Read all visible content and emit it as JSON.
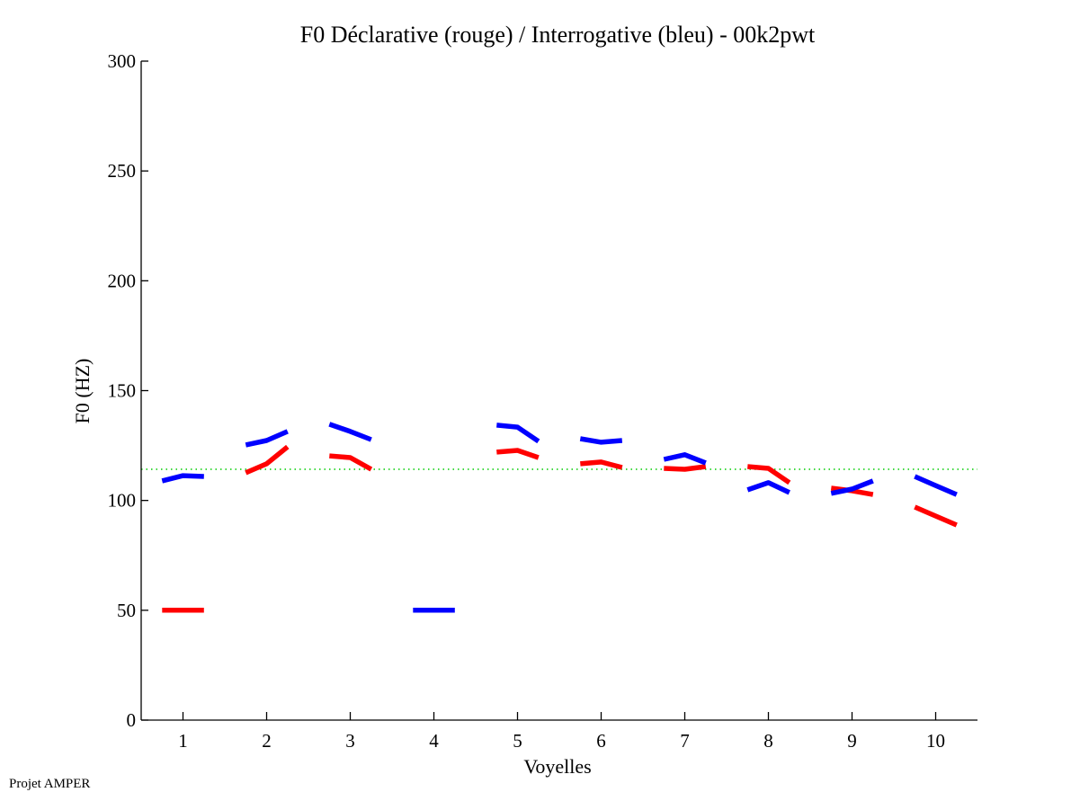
{
  "chart_data": {
    "type": "line",
    "title": "F0 Déclarative (rouge) / Interrogative (bleu) - 00k2pwt",
    "xlabel": "Voyelles",
    "ylabel": "F0 (HZ)",
    "xlim": [
      0.5,
      10.5
    ],
    "ylim": [
      0,
      300
    ],
    "xticks": [
      1,
      2,
      3,
      4,
      5,
      6,
      7,
      8,
      9,
      10
    ],
    "yticks": [
      0,
      50,
      100,
      150,
      200,
      250,
      300
    ],
    "grid": false,
    "reference_line": {
      "y": 114.2,
      "color": "#00cc00",
      "style": "dotted"
    },
    "segment_offsets": [
      -0.25,
      0,
      0.25
    ],
    "series": [
      {
        "name": "Déclarative (rouge)",
        "color": "#ff0000",
        "segments": [
          {
            "vowel": 1,
            "values": [
              50,
              50,
              50
            ]
          },
          {
            "vowel": 2,
            "values": [
              112.6,
              116.7,
              124.4
            ]
          },
          {
            "vowel": 3,
            "values": [
              120.3,
              119.5,
              114.2
            ]
          },
          {
            "vowel": 5,
            "values": [
              122.0,
              122.8,
              119.5
            ]
          },
          {
            "vowel": 6,
            "values": [
              116.7,
              117.5,
              115.0
            ]
          },
          {
            "vowel": 7,
            "values": [
              114.6,
              114.2,
              115.4
            ]
          },
          {
            "vowel": 8,
            "values": [
              115.4,
              114.6,
              108.1
            ]
          },
          {
            "vowel": 9,
            "values": [
              105.6,
              104.4,
              102.7
            ]
          },
          {
            "vowel": 10,
            "values": [
              97.0,
              92.9,
              88.8
            ]
          }
        ]
      },
      {
        "name": "Interrogative (bleu)",
        "color": "#0000ff",
        "segments": [
          {
            "vowel": 1,
            "values": [
              108.9,
              111.3,
              110.9
            ]
          },
          {
            "vowel": 2,
            "values": [
              125.3,
              127.3,
              131.4
            ]
          },
          {
            "vowel": 3,
            "values": [
              134.7,
              131.4,
              127.7
            ]
          },
          {
            "vowel": 4,
            "values": [
              50,
              50,
              50
            ]
          },
          {
            "vowel": 5,
            "values": [
              134.3,
              133.4,
              126.9
            ]
          },
          {
            "vowel": 6,
            "values": [
              128.1,
              126.5,
              127.3
            ]
          },
          {
            "vowel": 7,
            "values": [
              118.7,
              120.8,
              117.1
            ]
          },
          {
            "vowel": 8,
            "values": [
              104.8,
              108.1,
              103.6
            ]
          },
          {
            "vowel": 9,
            "values": [
              103.2,
              105.2,
              108.9
            ]
          },
          {
            "vowel": 10,
            "values": [
              110.9,
              106.8,
              102.7
            ]
          }
        ]
      }
    ]
  },
  "footer": "Projet AMPER"
}
